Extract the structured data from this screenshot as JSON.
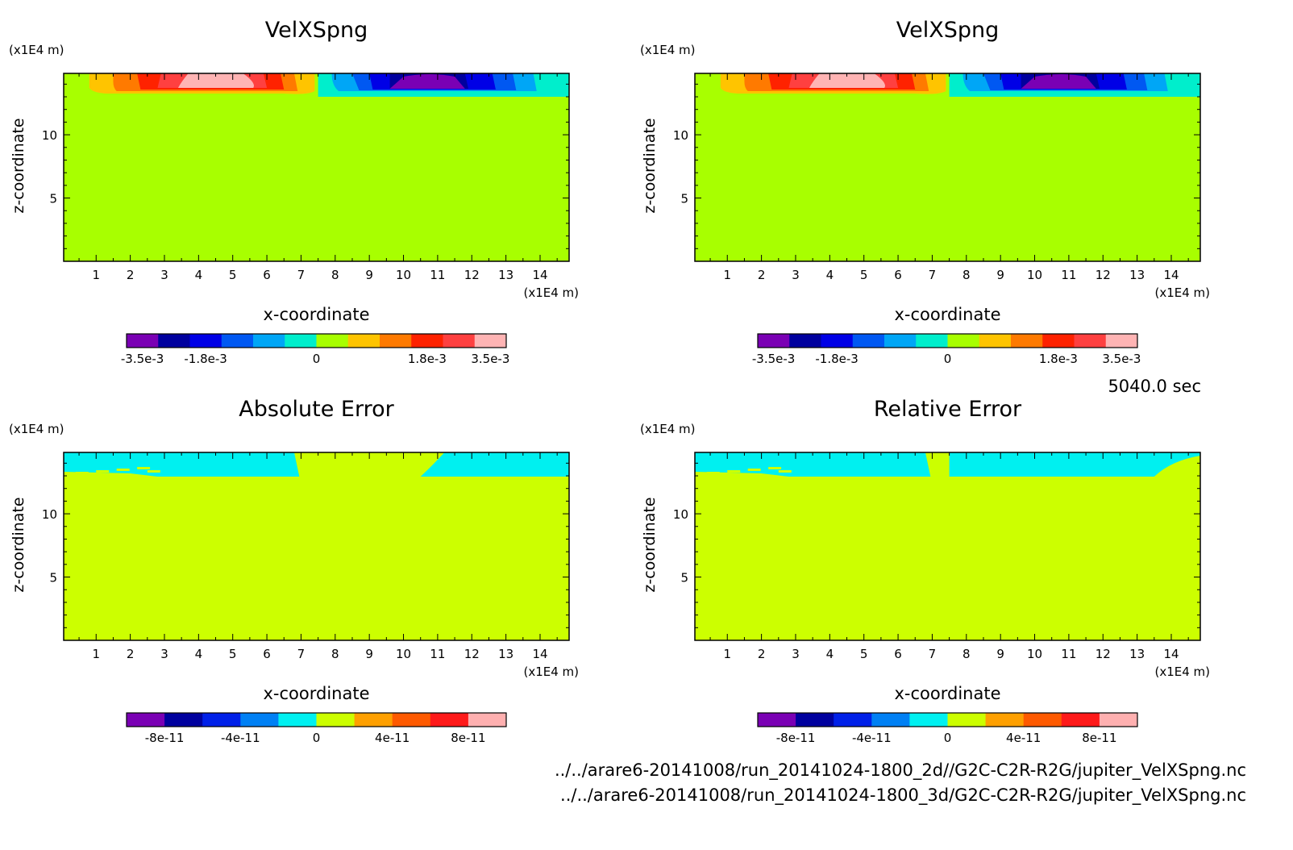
{
  "time_label": "5040.0 sec",
  "footer": {
    "line1": "../../arare6-20141008/run_20141024-1800_2d//G2C-C2R-R2G/jupiter_VelXSpng.nc",
    "line2": "../../arare6-20141008/run_20141024-1800_3d/G2C-C2R-R2G/jupiter_VelXSpng.nc"
  },
  "chart_data": [
    {
      "type": "heatmap",
      "title": "VelXSpng",
      "xlabel": "x-coordinate",
      "ylabel": "z-coordinate",
      "x_unit": "(x1E4 m)",
      "y_unit": "(x1E4 m)",
      "x_ticks": [
        1,
        2,
        3,
        4,
        5,
        6,
        7,
        8,
        9,
        10,
        11,
        12,
        13,
        14
      ],
      "y_ticks": [
        5,
        10
      ],
      "colorbar": {
        "colors": [
          "#7a00b4",
          "#00009e",
          "#0000e6",
          "#0058f2",
          "#00a6f6",
          "#00eecc",
          "#a8ff00",
          "#ffc400",
          "#ff7a00",
          "#ff2200",
          "#ff4040",
          "#ffb4b4"
        ],
        "tick_labels": [
          "-3.5e-3",
          "-1.8e-3",
          "0",
          "1.8e-3",
          "3.5e-3"
        ]
      }
    },
    {
      "type": "heatmap",
      "title": "VelXSpng",
      "xlabel": "x-coordinate",
      "ylabel": "z-coordinate",
      "x_unit": "(x1E4 m)",
      "y_unit": "(x1E4 m)",
      "x_ticks": [
        1,
        2,
        3,
        4,
        5,
        6,
        7,
        8,
        9,
        10,
        11,
        12,
        13,
        14
      ],
      "y_ticks": [
        5,
        10
      ],
      "colorbar": {
        "colors": [
          "#7a00b4",
          "#00009e",
          "#0000e6",
          "#0058f2",
          "#00a6f6",
          "#00eecc",
          "#a8ff00",
          "#ffc400",
          "#ff7a00",
          "#ff2200",
          "#ff4040",
          "#ffb4b4"
        ],
        "tick_labels": [
          "-3.5e-3",
          "-1.8e-3",
          "0",
          "1.8e-3",
          "3.5e-3"
        ]
      }
    },
    {
      "type": "heatmap",
      "title": "Absolute Error",
      "xlabel": "x-coordinate",
      "ylabel": "z-coordinate",
      "x_unit": "(x1E4 m)",
      "y_unit": "(x1E4 m)",
      "x_ticks": [
        1,
        2,
        3,
        4,
        5,
        6,
        7,
        8,
        9,
        10,
        11,
        12,
        13,
        14
      ],
      "y_ticks": [
        5,
        10
      ],
      "colorbar": {
        "colors": [
          "#7a00b4",
          "#00009e",
          "#0020e8",
          "#0080f4",
          "#00f0f0",
          "#ccff00",
          "#ffa000",
          "#ff5a00",
          "#ff1a1a",
          "#ffb0b0"
        ],
        "tick_labels": [
          "-8e-11",
          "-4e-11",
          "0",
          "4e-11",
          "8e-11"
        ]
      }
    },
    {
      "type": "heatmap",
      "title": "Relative Error",
      "xlabel": "x-coordinate",
      "ylabel": "z-coordinate",
      "x_unit": "(x1E4 m)",
      "y_unit": "(x1E4 m)",
      "x_ticks": [
        1,
        2,
        3,
        4,
        5,
        6,
        7,
        8,
        9,
        10,
        11,
        12,
        13,
        14
      ],
      "y_ticks": [
        5,
        10
      ],
      "colorbar": {
        "colors": [
          "#7a00b4",
          "#00009e",
          "#0020e8",
          "#0080f4",
          "#00f0f0",
          "#ccff00",
          "#ffa000",
          "#ff5a00",
          "#ff1a1a",
          "#ffb0b0"
        ],
        "tick_labels": [
          "-8e-11",
          "-4e-11",
          "0",
          "4e-11",
          "8e-11"
        ]
      }
    }
  ]
}
